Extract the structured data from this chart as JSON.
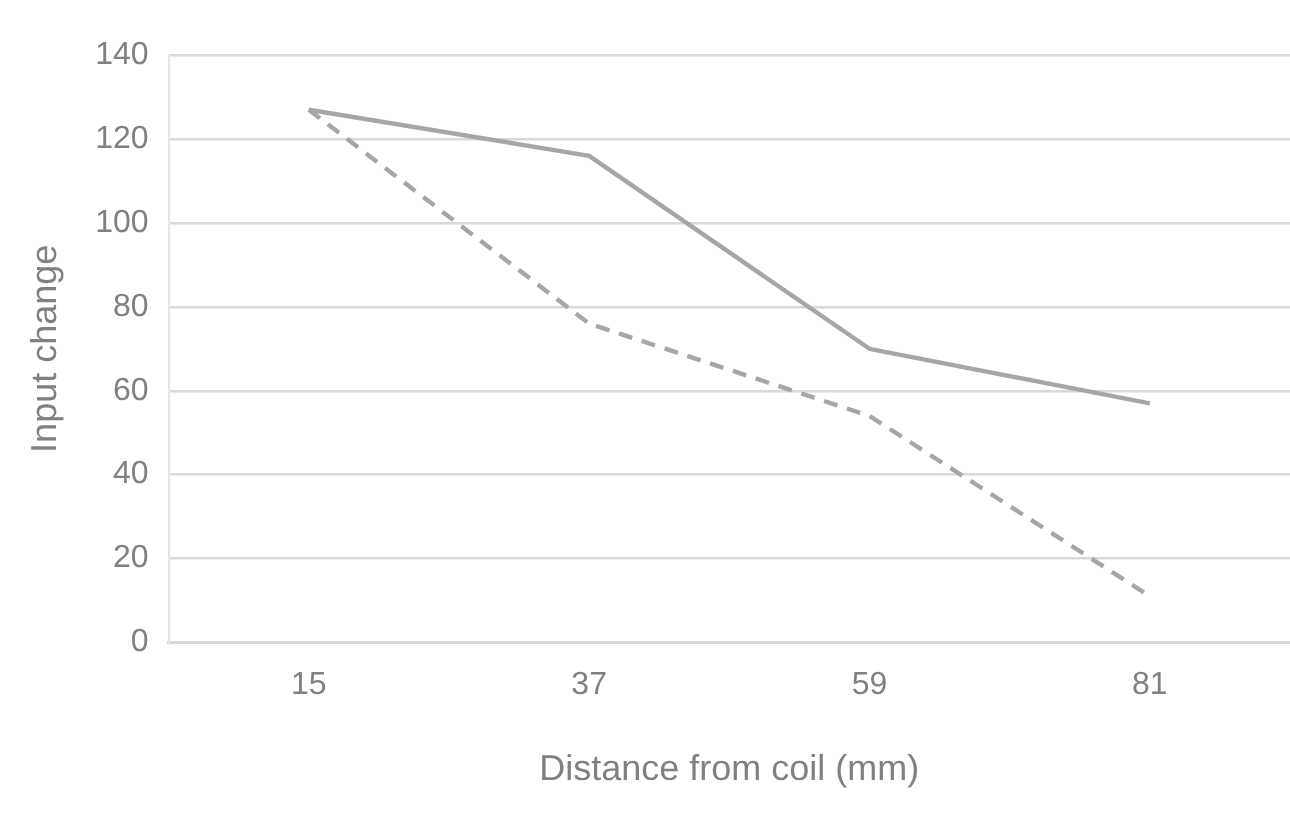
{
  "chart_data": {
    "type": "line",
    "xlabel": "Distance from coil (mm)",
    "ylabel": "Input change",
    "categories": [
      "15",
      "37",
      "59",
      "81"
    ],
    "series": [
      {
        "color": "#a6a6a6",
        "values": [
          127,
          116,
          70,
          57
        ],
        "line_style": "solid"
      },
      {
        "color": "#a6a6a6",
        "values": [
          127,
          76,
          54,
          11
        ],
        "line_style": "dashed"
      }
    ],
    "ylim": [
      0,
      140
    ],
    "yticks": [
      0,
      20,
      40,
      60,
      80,
      100,
      120,
      140
    ],
    "grid": "y",
    "legend": false,
    "marker": "none"
  }
}
